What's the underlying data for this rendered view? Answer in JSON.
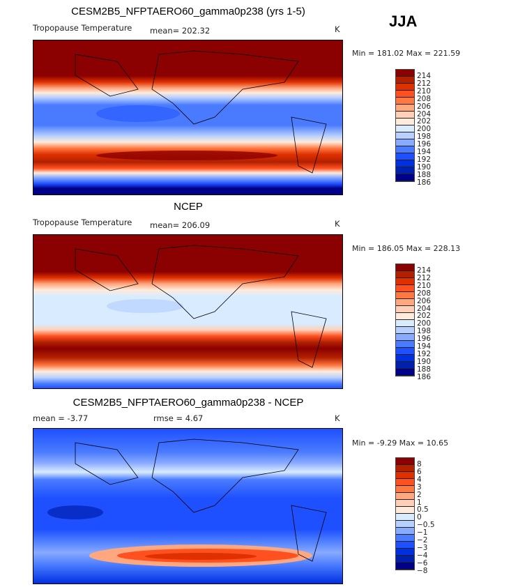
{
  "season": "JJA",
  "colors": [
    "#8B0000",
    "#B22000",
    "#E03000",
    "#FF5020",
    "#FF7840",
    "#FFA880",
    "#FFCFB8",
    "#FFEBDC",
    "#D8EBFF",
    "#B8D0FF",
    "#88AAFF",
    "#4A7BFF",
    "#1E50FF",
    "#0030E0",
    "#0020B0",
    "#00008B"
  ],
  "chart_data": [
    {
      "type": "heatmap",
      "title": "CESM2B5_NFPTAERO60_gamma0p238 (yrs 1-5)",
      "variable": "Tropopause Temperature",
      "mean_label": "mean= 202.32",
      "units": "K",
      "min_max": "Min = 181.02 Max = 221.59",
      "levels": [
        "214",
        "212",
        "210",
        "208",
        "206",
        "204",
        "202",
        "200",
        "198",
        "196",
        "194",
        "192",
        "190",
        "188",
        "186"
      ]
    },
    {
      "type": "heatmap",
      "title": "NCEP",
      "variable": "Tropopause Temperature",
      "mean_label": "mean= 206.09",
      "units": "K",
      "min_max": "Min = 186.05 Max = 228.13",
      "levels": [
        "214",
        "212",
        "210",
        "208",
        "206",
        "204",
        "202",
        "200",
        "198",
        "196",
        "194",
        "192",
        "190",
        "188",
        "186"
      ]
    },
    {
      "type": "heatmap",
      "title": "CESM2B5_NFPTAERO60_gamma0p238 - NCEP",
      "mean_label": "mean =   -3.77",
      "rmse_label": "rmse =    4.67",
      "units": "K",
      "min_max": "Min =   -9.29 Max =   10.65",
      "levels": [
        "8",
        "6",
        "4",
        "3",
        "2",
        "1",
        "0.5",
        "0",
        "-0.5",
        "-1",
        "-2",
        "-3",
        "-4",
        "-6",
        "-8"
      ]
    }
  ]
}
